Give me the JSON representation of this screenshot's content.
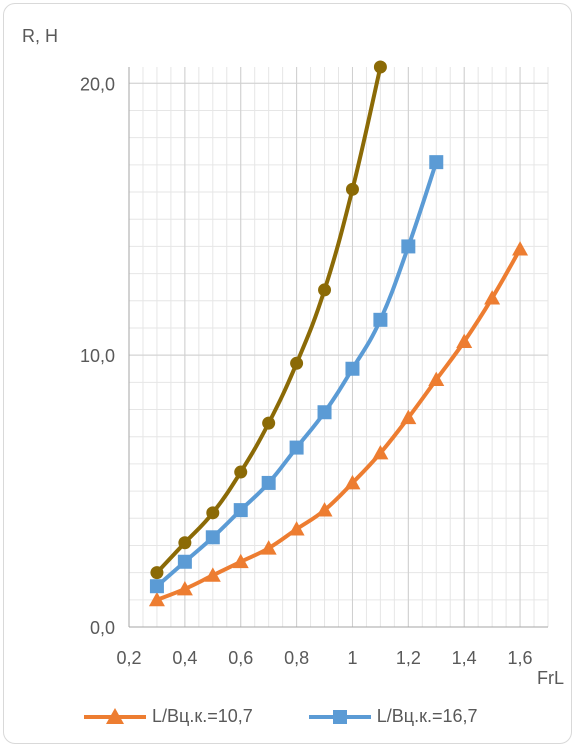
{
  "chart_data": {
    "type": "line",
    "ylabel": "R, Н",
    "xlabel": "FrL",
    "xlim": [
      0.2,
      1.7
    ],
    "ylim": [
      0,
      20.6
    ],
    "y_major_ticks": [
      0,
      10,
      20
    ],
    "y_tick_labels": [
      "0,0",
      "10,0",
      "20,0"
    ],
    "x_major_ticks": [
      0.2,
      0.4,
      0.6,
      0.8,
      1.0,
      1.2,
      1.4,
      1.6
    ],
    "x_tick_labels": [
      "0,2",
      "0,4",
      "0,6",
      "0,8",
      "1",
      "1,2",
      "1,4",
      "1,6"
    ],
    "grid": true,
    "legend_position": "bottom",
    "series": [
      {
        "name": "L/Вц.к.=10,7",
        "color": "#ED7D31",
        "marker": "triangle",
        "x": [
          0.3,
          0.4,
          0.5,
          0.6,
          0.7,
          0.8,
          0.9,
          1.0,
          1.1,
          1.2,
          1.3,
          1.4,
          1.5,
          1.6
        ],
        "y": [
          1.0,
          1.4,
          1.9,
          2.4,
          2.9,
          3.6,
          4.3,
          5.3,
          6.4,
          7.7,
          9.1,
          10.5,
          12.1,
          13.9
        ]
      },
      {
        "name": "L/Вц.к.=16,7",
        "color": "#5B9BD5",
        "marker": "square",
        "x": [
          0.3,
          0.4,
          0.5,
          0.6,
          0.7,
          0.8,
          0.9,
          1.0,
          1.1,
          1.2,
          1.3
        ],
        "y": [
          1.5,
          2.4,
          3.3,
          4.3,
          5.3,
          6.6,
          7.9,
          9.5,
          11.3,
          14.0,
          17.1
        ]
      },
      {
        "color": "#8B6A06",
        "marker": "circle",
        "x": [
          0.3,
          0.4,
          0.5,
          0.6,
          0.7,
          0.8,
          0.9,
          1.0,
          1.1
        ],
        "y": [
          2.0,
          3.1,
          4.2,
          5.7,
          7.5,
          9.7,
          12.4,
          16.1,
          20.6
        ]
      }
    ]
  }
}
